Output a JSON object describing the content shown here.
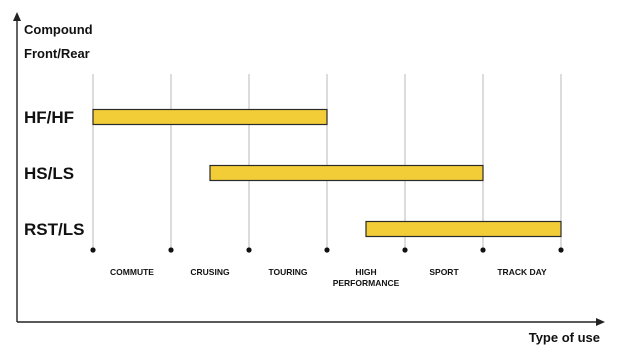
{
  "chart_data": {
    "type": "bar",
    "orientation": "horizontal",
    "y_title_line1": "Compound",
    "y_title_line2": "Front/Rear",
    "x_title": "Type of use",
    "categories": [
      [
        "COMMUTE"
      ],
      [
        "CRUSING"
      ],
      [
        "TOURING"
      ],
      [
        "HIGH",
        "PERFORMANCE"
      ],
      [
        "SPORT"
      ],
      [
        "TRACK DAY"
      ]
    ],
    "bands": [
      {
        "label": "HF/HF",
        "start": 0,
        "end": 3
      },
      {
        "label": "HS/LS",
        "start": 1.5,
        "end": 5
      },
      {
        "label": "RST/LS",
        "start": 3.5,
        "end": 6
      }
    ],
    "grid": true,
    "colors": {
      "bar_fill": "#f3cd37",
      "bar_stroke": "#2a2a2a",
      "gridline": "#b9b9b9",
      "axis": "#222222",
      "marker": "#111111"
    }
  }
}
